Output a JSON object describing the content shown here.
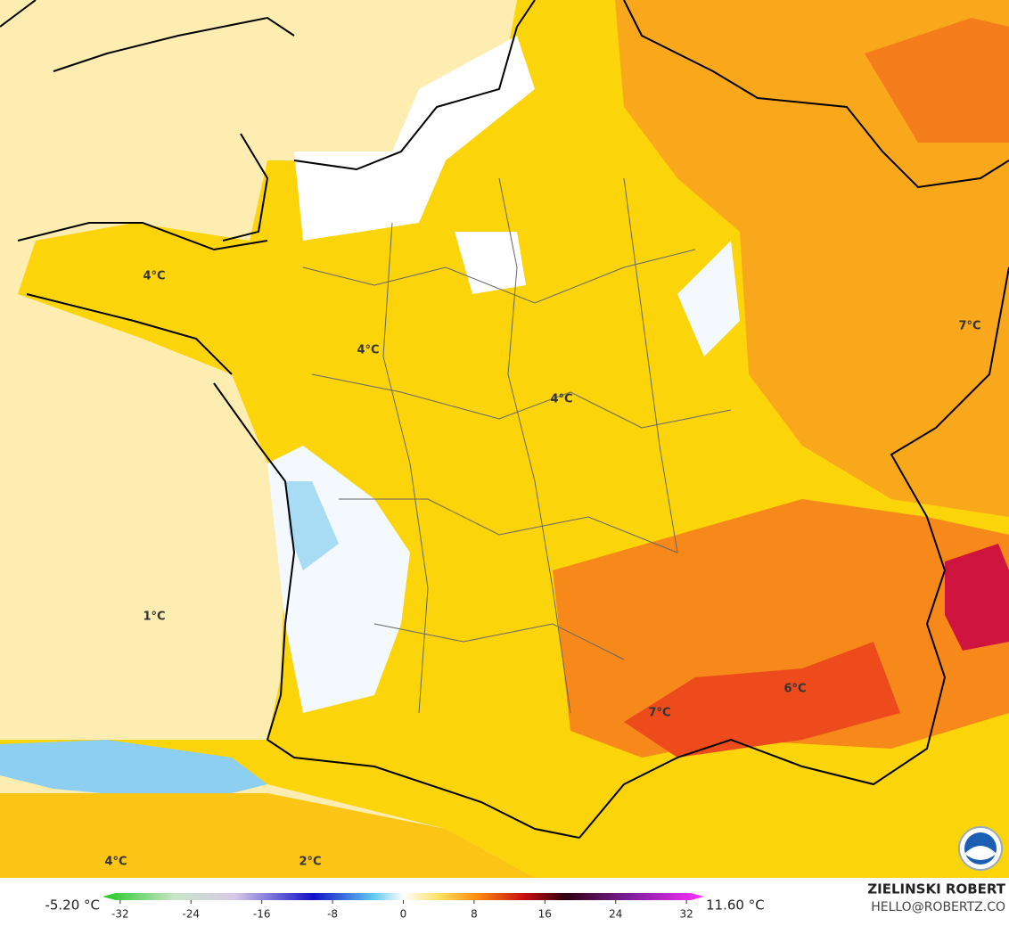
{
  "map": {
    "labels": [
      "4°C",
      "4°C",
      "4°C",
      "7°C",
      "1°C",
      "7°C",
      "6°C",
      "4°C",
      "2°C"
    ],
    "colorbar": {
      "min_label": "-5.20 °C",
      "max_label": "11.60 °C",
      "lim": [
        -34,
        34
      ],
      "ticks": [
        -32,
        -24,
        -16,
        -8,
        0,
        8,
        16,
        24,
        32
      ]
    },
    "credit": {
      "name": "ZIELINSKI ROBERT",
      "contact": "HELLO@ROBERTZ.CO"
    }
  }
}
